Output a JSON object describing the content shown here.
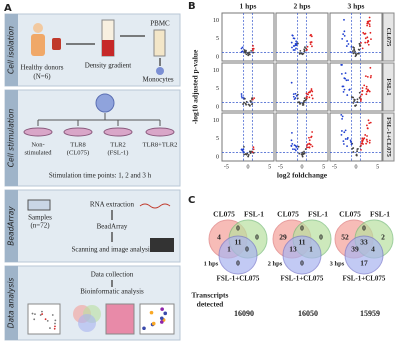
{
  "panel_labels": [
    "A",
    "B",
    "C"
  ],
  "panel_a": {
    "stages": [
      "Cell isolation",
      "Cell stimulation",
      "BeadArray",
      "Data analysis"
    ],
    "donors": [
      "Healthy donors",
      "(N=6)"
    ],
    "density": "Density gradient",
    "pbmc": "PBMC",
    "monocytes": "Monocytes",
    "conditions": [
      [
        "Non-",
        "stimulated"
      ],
      [
        "TLR8",
        "(CL075)"
      ],
      [
        "TLR2",
        "(FSL-1)"
      ],
      [
        "TLR8+TLR2"
      ]
    ],
    "timepoints": "Stimulation time points: 1, 2 and 3 h",
    "samples": [
      "Samples",
      "(n=72)"
    ],
    "rna": "RNA extraction",
    "beadarray": "BeadArray",
    "scanning": "Scanning and image analysis",
    "collection": "Data collection",
    "bioinformatic": "Bioinformatic analysis"
  },
  "panel_b": {
    "columns": [
      "1 hps",
      "2 hps",
      "3 hps"
    ],
    "rows": [
      "CL075",
      "FSL-1",
      "FSL-1+CL075"
    ],
    "y_label": "-log10 adjusted p-value",
    "x_label": "log2 foldchange",
    "xticks": [
      -5,
      0,
      5
    ],
    "yticks": [
      10,
      5,
      0
    ]
  },
  "panel_c": {
    "set_labels": [
      "CL075",
      "FSL-1"
    ],
    "combined_label": "FSL-1+CL075",
    "venns": [
      {
        "time": "1 hps",
        "counts": [
          4,
          0,
          0,
          1,
          11,
          0,
          0
        ],
        "transcripts": 16090
      },
      {
        "time": "2 hps",
        "counts": [
          29,
          0,
          0,
          13,
          11,
          1,
          0
        ],
        "transcripts": 16050
      },
      {
        "time": "3 hps",
        "counts": [
          52,
          0,
          2,
          39,
          33,
          4,
          17
        ],
        "transcripts": 15959
      }
    ],
    "transcripts_label": [
      "Transcripts",
      "detected"
    ]
  }
}
